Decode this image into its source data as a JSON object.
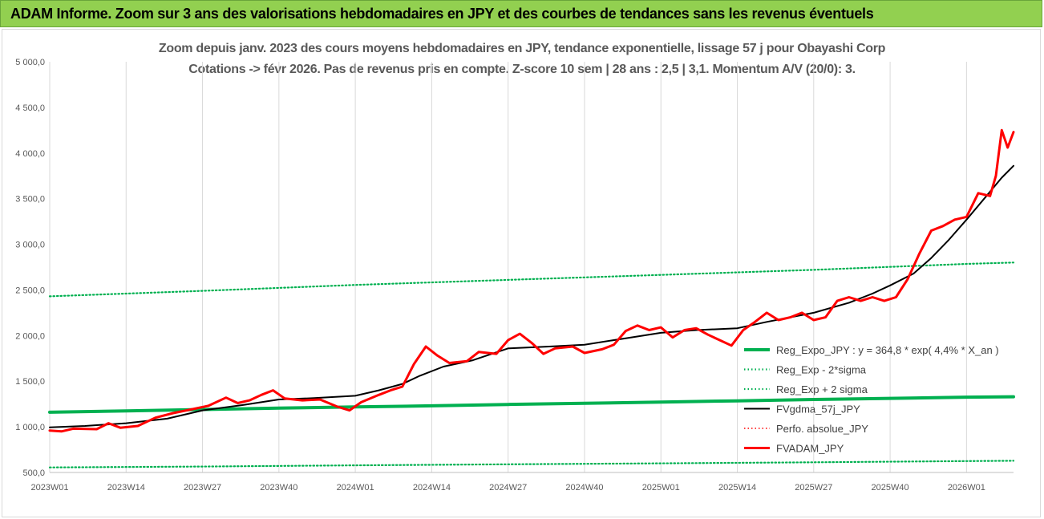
{
  "banner": {
    "title": "ADAM Informe. Zoom sur 3 ans des valorisations hebdomadaires en JPY et des courbes de tendances sans les revenus éventuels"
  },
  "chart_data": {
    "type": "line",
    "title_line1": "Zoom depuis janv. 2023 des cours moyens hebdomadaires en JPY, tendance exponentielle, lissage 57 j pour Obayashi Corp",
    "title_line2": "Cotations -> févr 2026.  Pas de revenus pris en compte. Z-score 10 sem | 28 ans : 2,5 | 3,1. Momentum A/V (20/0): 3.",
    "ylim": [
      500,
      5000
    ],
    "y_ticks": [
      "500,0",
      "1 000,0",
      "1 500,0",
      "2 000,0",
      "2 500,0",
      "3 000,0",
      "3 500,0",
      "4 000,0",
      "4 500,0",
      "5 000,0"
    ],
    "y_tick_values": [
      500,
      1000,
      1500,
      2000,
      2500,
      3000,
      3500,
      4000,
      4500,
      5000
    ],
    "x_ticks": [
      "2023W01",
      "2023W14",
      "2023W27",
      "2023W40",
      "2024W01",
      "2024W14",
      "2024W27",
      "2024W40",
      "2025W01",
      "2025W14",
      "2025W27",
      "2025W40",
      "2026W01"
    ],
    "x_tick_index": [
      0,
      13,
      26,
      39,
      52,
      65,
      78,
      91,
      104,
      117,
      130,
      143,
      156
    ],
    "x_count": 165,
    "grid": "vertical",
    "legend_position": "right",
    "series": [
      {
        "name": "Reg_Expo_JPY : y = 364,8 * exp( 4,4% *  X_an )",
        "color": "#00b050",
        "style": "solid",
        "width": 4,
        "points": [
          [
            0,
            1160
          ],
          [
            13,
            1175
          ],
          [
            26,
            1190
          ],
          [
            39,
            1205
          ],
          [
            52,
            1218
          ],
          [
            65,
            1230
          ],
          [
            78,
            1245
          ],
          [
            91,
            1258
          ],
          [
            104,
            1272
          ],
          [
            117,
            1285
          ],
          [
            130,
            1300
          ],
          [
            143,
            1312
          ],
          [
            156,
            1325
          ],
          [
            164,
            1330
          ]
        ]
      },
      {
        "name": "Reg_Exp - 2*sigma",
        "color": "#00b050",
        "style": "dotted",
        "width": 2.2,
        "points": [
          [
            0,
            555
          ],
          [
            26,
            565
          ],
          [
            52,
            578
          ],
          [
            78,
            590
          ],
          [
            104,
            600
          ],
          [
            130,
            612
          ],
          [
            156,
            625
          ],
          [
            164,
            628
          ]
        ]
      },
      {
        "name": "Reg_Exp + 2 sigma",
        "color": "#00b050",
        "style": "dotted",
        "width": 2.2,
        "points": [
          [
            0,
            2430
          ],
          [
            26,
            2490
          ],
          [
            52,
            2555
          ],
          [
            78,
            2610
          ],
          [
            104,
            2665
          ],
          [
            130,
            2720
          ],
          [
            156,
            2785
          ],
          [
            164,
            2800
          ]
        ]
      },
      {
        "name": "FVgdma_57j_JPY",
        "color": "#000000",
        "style": "solid",
        "width": 2,
        "points": [
          [
            0,
            995
          ],
          [
            6,
            1010
          ],
          [
            13,
            1040
          ],
          [
            20,
            1090
          ],
          [
            26,
            1180
          ],
          [
            33,
            1240
          ],
          [
            39,
            1300
          ],
          [
            45,
            1315
          ],
          [
            52,
            1340
          ],
          [
            56,
            1400
          ],
          [
            60,
            1470
          ],
          [
            63,
            1560
          ],
          [
            67,
            1660
          ],
          [
            72,
            1730
          ],
          [
            78,
            1860
          ],
          [
            85,
            1880
          ],
          [
            91,
            1900
          ],
          [
            98,
            1970
          ],
          [
            104,
            2030
          ],
          [
            110,
            2060
          ],
          [
            117,
            2080
          ],
          [
            122,
            2150
          ],
          [
            130,
            2250
          ],
          [
            136,
            2360
          ],
          [
            140,
            2460
          ],
          [
            143,
            2550
          ],
          [
            147,
            2680
          ],
          [
            150,
            2850
          ],
          [
            153,
            3050
          ],
          [
            156,
            3270
          ],
          [
            159,
            3500
          ],
          [
            162,
            3730
          ],
          [
            164,
            3860
          ]
        ]
      },
      {
        "name": "Perfo. absolue_JPY",
        "color": "#ff0000",
        "style": "dotted",
        "width": 1.5,
        "points": []
      },
      {
        "name": "FVADAM_JPY",
        "color": "#ff0000",
        "style": "solid",
        "width": 3,
        "points": [
          [
            0,
            960
          ],
          [
            2,
            950
          ],
          [
            4,
            980
          ],
          [
            8,
            975
          ],
          [
            10,
            1040
          ],
          [
            12,
            990
          ],
          [
            15,
            1010
          ],
          [
            18,
            1100
          ],
          [
            21,
            1150
          ],
          [
            24,
            1190
          ],
          [
            27,
            1230
          ],
          [
            30,
            1320
          ],
          [
            32,
            1260
          ],
          [
            34,
            1290
          ],
          [
            36,
            1350
          ],
          [
            38,
            1400
          ],
          [
            40,
            1310
          ],
          [
            43,
            1290
          ],
          [
            46,
            1300
          ],
          [
            49,
            1220
          ],
          [
            51,
            1180
          ],
          [
            53,
            1270
          ],
          [
            56,
            1350
          ],
          [
            58,
            1400
          ],
          [
            60,
            1440
          ],
          [
            62,
            1690
          ],
          [
            64,
            1880
          ],
          [
            66,
            1780
          ],
          [
            68,
            1700
          ],
          [
            71,
            1720
          ],
          [
            73,
            1820
          ],
          [
            76,
            1800
          ],
          [
            78,
            1950
          ],
          [
            80,
            2020
          ],
          [
            82,
            1920
          ],
          [
            84,
            1800
          ],
          [
            86,
            1860
          ],
          [
            89,
            1880
          ],
          [
            91,
            1810
          ],
          [
            94,
            1850
          ],
          [
            96,
            1900
          ],
          [
            98,
            2050
          ],
          [
            100,
            2110
          ],
          [
            102,
            2060
          ],
          [
            104,
            2090
          ],
          [
            106,
            1980
          ],
          [
            108,
            2060
          ],
          [
            110,
            2080
          ],
          [
            112,
            2010
          ],
          [
            114,
            1950
          ],
          [
            116,
            1890
          ],
          [
            118,
            2060
          ],
          [
            120,
            2150
          ],
          [
            122,
            2250
          ],
          [
            124,
            2170
          ],
          [
            126,
            2200
          ],
          [
            128,
            2250
          ],
          [
            130,
            2170
          ],
          [
            132,
            2200
          ],
          [
            134,
            2380
          ],
          [
            136,
            2420
          ],
          [
            138,
            2380
          ],
          [
            140,
            2420
          ],
          [
            142,
            2380
          ],
          [
            144,
            2420
          ],
          [
            146,
            2620
          ],
          [
            148,
            2900
          ],
          [
            150,
            3150
          ],
          [
            152,
            3200
          ],
          [
            154,
            3270
          ],
          [
            156,
            3300
          ],
          [
            158,
            3560
          ],
          [
            160,
            3530
          ],
          [
            161,
            3750
          ],
          [
            162,
            4250
          ],
          [
            163,
            4060
          ],
          [
            164,
            4230
          ]
        ]
      }
    ]
  }
}
